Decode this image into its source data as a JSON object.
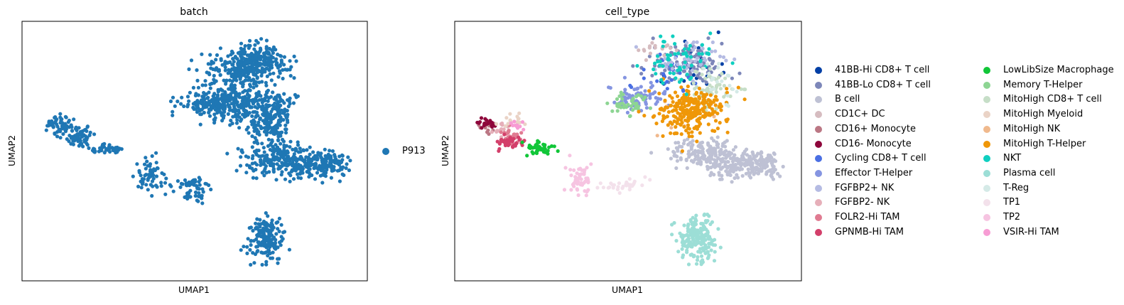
{
  "chart_data": [
    {
      "type": "scatter",
      "title": "batch",
      "xlabel": "UMAP1",
      "ylabel": "UMAP2",
      "xlim": [
        0,
        10
      ],
      "ylim": [
        0,
        10
      ],
      "grid": false,
      "legend_placement": "right",
      "series": [
        {
          "name": "P913",
          "color": "#1f77b4",
          "clusters": [
            {
              "x": 6.4,
              "y": 8.3,
              "sx": 0.6,
              "sy": 0.4,
              "n": 220
            },
            {
              "x": 7.0,
              "y": 8.8,
              "sx": 0.45,
              "sy": 0.35,
              "n": 180
            },
            {
              "x": 5.5,
              "y": 7.0,
              "sx": 0.5,
              "sy": 0.3,
              "n": 150
            },
            {
              "x": 6.4,
              "y": 6.9,
              "sx": 0.5,
              "sy": 0.4,
              "n": 170
            },
            {
              "x": 7.5,
              "y": 6.8,
              "sx": 0.35,
              "sy": 0.45,
              "n": 120
            },
            {
              "x": 7.3,
              "y": 5.9,
              "sx": 0.35,
              "sy": 0.3,
              "n": 80
            },
            {
              "x": 7.5,
              "y": 4.7,
              "sx": 0.5,
              "sy": 0.35,
              "n": 180
            },
            {
              "x": 8.6,
              "y": 4.4,
              "sx": 0.55,
              "sy": 0.28,
              "n": 170
            },
            {
              "x": 9.3,
              "y": 4.5,
              "sx": 0.25,
              "sy": 0.25,
              "n": 60
            },
            {
              "x": 7.2,
              "y": 1.3,
              "sx": 0.28,
              "sy": 0.45,
              "n": 170
            },
            {
              "x": 0.8,
              "y": 6.1,
              "sx": 0.25,
              "sy": 0.2,
              "n": 60
            },
            {
              "x": 1.4,
              "y": 5.6,
              "sx": 0.22,
              "sy": 0.25,
              "n": 60
            },
            {
              "x": 2.2,
              "y": 5.1,
              "sx": 0.35,
              "sy": 0.12,
              "n": 40
            },
            {
              "x": 3.5,
              "y": 3.8,
              "sx": 0.2,
              "sy": 0.4,
              "n": 50
            },
            {
              "x": 4.6,
              "y": 3.6,
              "sx": 0.4,
              "sy": 0.15,
              "n": 30
            },
            {
              "x": 5.1,
              "y": 3.4,
              "sx": 0.2,
              "sy": 0.3,
              "n": 40
            }
          ]
        }
      ]
    },
    {
      "type": "scatter",
      "title": "cell_type",
      "xlabel": "UMAP1",
      "ylabel": "UMAP2",
      "xlim": [
        0,
        10
      ],
      "ylim": [
        0,
        10
      ],
      "grid": false,
      "legend_placement": "right",
      "series": [
        {
          "name": "41BB-Hi CD8+ T cell",
          "color": "#023fa5",
          "clusters": [
            {
              "x": 7.0,
              "y": 8.6,
              "sx": 0.6,
              "sy": 0.5,
              "n": 25
            }
          ]
        },
        {
          "name": "41BB-Lo CD8+ T cell",
          "color": "#7d87b9",
          "clusters": [
            {
              "x": 6.9,
              "y": 8.7,
              "sx": 0.6,
              "sy": 0.45,
              "n": 110
            }
          ]
        },
        {
          "name": "B cell",
          "color": "#bec1d4",
          "clusters": [
            {
              "x": 7.4,
              "y": 4.9,
              "sx": 0.5,
              "sy": 0.35,
              "n": 160
            },
            {
              "x": 8.6,
              "y": 4.4,
              "sx": 0.55,
              "sy": 0.28,
              "n": 170
            },
            {
              "x": 9.3,
              "y": 4.5,
              "sx": 0.25,
              "sy": 0.25,
              "n": 60
            }
          ]
        },
        {
          "name": "CD1C+ DC",
          "color": "#d6bcc0",
          "clusters": [
            {
              "x": 6.0,
              "y": 9.2,
              "sx": 0.35,
              "sy": 0.25,
              "n": 20
            }
          ]
        },
        {
          "name": "CD16+ Monocyte",
          "color": "#bb7784",
          "clusters": [
            {
              "x": 0.6,
              "y": 6.0,
              "sx": 0.15,
              "sy": 0.15,
              "n": 15
            }
          ]
        },
        {
          "name": "CD16- Monocyte",
          "color": "#8e063b",
          "clusters": [
            {
              "x": 0.6,
              "y": 6.2,
              "sx": 0.15,
              "sy": 0.12,
              "n": 20
            }
          ]
        },
        {
          "name": "Cycling CD8+ T cell",
          "color": "#4a6fe3",
          "clusters": [
            {
              "x": 6.2,
              "y": 8.2,
              "sx": 0.5,
              "sy": 0.4,
              "n": 25
            }
          ]
        },
        {
          "name": "Effector T-Helper",
          "color": "#8595e1",
          "clusters": [
            {
              "x": 5.4,
              "y": 7.2,
              "sx": 0.45,
              "sy": 0.3,
              "n": 70
            }
          ]
        },
        {
          "name": "FGFBP2+ NK",
          "color": "#b5bbe3",
          "clusters": [
            {
              "x": 6.8,
              "y": 8.9,
              "sx": 0.55,
              "sy": 0.4,
              "n": 50
            }
          ]
        },
        {
          "name": "FGFBP2- NK",
          "color": "#e6afb9",
          "clusters": [
            {
              "x": 1.0,
              "y": 5.9,
              "sx": 0.2,
              "sy": 0.15,
              "n": 15
            }
          ]
        },
        {
          "name": "FOLR2-Hi TAM",
          "color": "#e07b91",
          "clusters": [
            {
              "x": 1.3,
              "y": 5.7,
              "sx": 0.18,
              "sy": 0.18,
              "n": 25
            }
          ]
        },
        {
          "name": "GPNMB-Hi TAM",
          "color": "#d33f6a",
          "clusters": [
            {
              "x": 1.2,
              "y": 5.4,
              "sx": 0.22,
              "sy": 0.15,
              "n": 40
            }
          ]
        },
        {
          "name": "LowLibSize Macrophage",
          "color": "#11c638",
          "clusters": [
            {
              "x": 2.2,
              "y": 5.1,
              "sx": 0.25,
              "sy": 0.12,
              "n": 40
            }
          ]
        },
        {
          "name": "Memory T-Helper",
          "color": "#8dd593",
          "clusters": [
            {
              "x": 5.0,
              "y": 7.0,
              "sx": 0.3,
              "sy": 0.3,
              "n": 40
            }
          ]
        },
        {
          "name": "MitoHigh CD8+ T cell",
          "color": "#c6dec7",
          "clusters": [
            {
              "x": 7.6,
              "y": 7.6,
              "sx": 0.35,
              "sy": 0.45,
              "n": 60
            }
          ]
        },
        {
          "name": "MitoHigh Myeloid",
          "color": "#ead3c6",
          "clusters": [
            {
              "x": 1.4,
              "y": 6.3,
              "sx": 0.2,
              "sy": 0.12,
              "n": 15
            }
          ]
        },
        {
          "name": "MitoHigh NK",
          "color": "#f0b98d",
          "clusters": [
            {
              "x": 6.8,
              "y": 6.4,
              "sx": 0.5,
              "sy": 0.4,
              "n": 15
            }
          ]
        },
        {
          "name": "MitoHigh T-Helper",
          "color": "#ef9708",
          "clusters": [
            {
              "x": 7.0,
              "y": 6.7,
              "sx": 0.55,
              "sy": 0.45,
              "n": 260
            }
          ]
        },
        {
          "name": "NKT",
          "color": "#0fcfc0",
          "clusters": [
            {
              "x": 6.6,
              "y": 8.8,
              "sx": 0.55,
              "sy": 0.45,
              "n": 60
            }
          ]
        },
        {
          "name": "Plasma cell",
          "color": "#9cded6",
          "clusters": [
            {
              "x": 7.2,
              "y": 1.3,
              "sx": 0.28,
              "sy": 0.45,
              "n": 190
            }
          ]
        },
        {
          "name": "T-Reg",
          "color": "#d5eae7",
          "clusters": [
            {
              "x": 7.9,
              "y": 7.9,
              "sx": 0.3,
              "sy": 0.4,
              "n": 20
            }
          ]
        },
        {
          "name": "TP1",
          "color": "#f3e1eb",
          "clusters": [
            {
              "x": 4.8,
              "y": 3.5,
              "sx": 0.45,
              "sy": 0.15,
              "n": 30
            }
          ]
        },
        {
          "name": "TP2",
          "color": "#f6c4e1",
          "clusters": [
            {
              "x": 3.5,
              "y": 3.8,
              "sx": 0.2,
              "sy": 0.35,
              "n": 50
            }
          ]
        },
        {
          "name": "VSIR-Hi TAM",
          "color": "#f79cd4",
          "clusters": [
            {
              "x": 1.5,
              "y": 6.1,
              "sx": 0.15,
              "sy": 0.1,
              "n": 10
            }
          ]
        }
      ]
    }
  ]
}
